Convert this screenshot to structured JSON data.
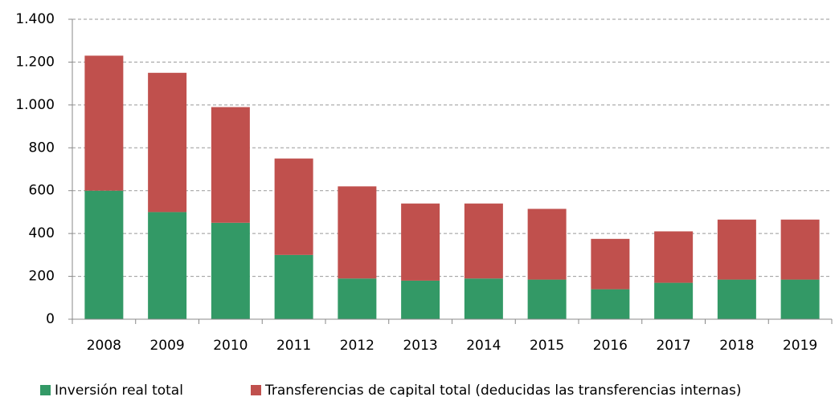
{
  "chart_data": {
    "type": "bar",
    "stacked": true,
    "categories": [
      "2008",
      "2009",
      "2010",
      "2011",
      "2012",
      "2013",
      "2014",
      "2015",
      "2016",
      "2017",
      "2018",
      "2019"
    ],
    "series": [
      {
        "name": "Inversión real total",
        "color": "#339966",
        "values": [
          600,
          500,
          450,
          300,
          190,
          180,
          190,
          185,
          140,
          170,
          185,
          185
        ]
      },
      {
        "name": "Transferencias de capital total (deducidas las transferencias internas)",
        "color": "#c0504d",
        "values": [
          630,
          650,
          540,
          450,
          430,
          360,
          350,
          330,
          235,
          240,
          280,
          280
        ]
      }
    ],
    "ylim": [
      0,
      1400
    ],
    "yticks": [
      0,
      200,
      400,
      600,
      800,
      {
        "value": 1000,
        "label": "1.000"
      },
      {
        "value": 1200,
        "label": "1.200"
      },
      {
        "value": 1400,
        "label": "1.400"
      }
    ],
    "grid": true,
    "legend": "bottom"
  }
}
